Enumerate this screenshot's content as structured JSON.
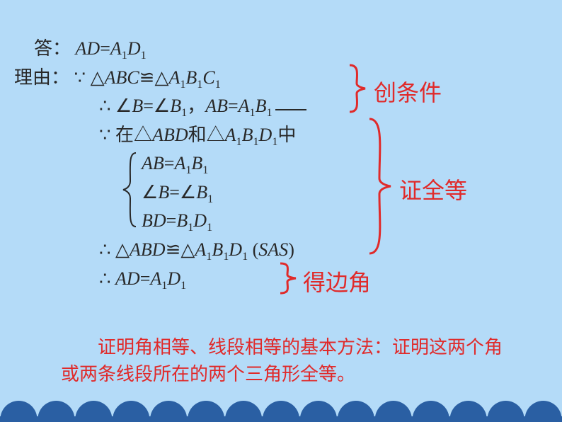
{
  "background_color": "#b4dbf8",
  "text_color": "#282828",
  "accent_color": "#e02a2a",
  "footer_wave_color": "#2a5fa3",
  "base_fontsize": 26,
  "annotation_fontsize": 32,
  "lines": {
    "answer_label": "答：",
    "answer_expr": "AD=A₁D₁",
    "reason_label": "理由：",
    "l1_sym": "∵",
    "l1_text": "△ABC≌△A₁B₁C₁",
    "l2_sym": "∴",
    "l2_text": "∠B=∠B₁，AB=A₁B₁",
    "l3_sym": "∵",
    "l3_text": "在△ABD和△A₁B₁D₁中",
    "brace_lines": {
      "b1": "AB=A₁B₁",
      "b2": "∠B=∠B₁",
      "b3": "BD=B₁D₁"
    },
    "l5_sym": "∴",
    "l5_text": "△ABD≌△A₁B₁D₁ (SAS)",
    "l6_sym": "∴",
    "l6_text": "AD=A₁D₁"
  },
  "annotations": {
    "a1": "创条件",
    "a2": "证全等",
    "a3": "得边角"
  },
  "braces": {
    "left_inner": {
      "color": "#282828",
      "stroke_width": 2
    },
    "right_annot": {
      "color": "#e02a2a",
      "stroke_width": 3
    }
  },
  "summary_text": "证明角相等、线段相等的基本方法：证明这两个角或两条线段所在的两个三角形全等。",
  "footer": {
    "scallop_count": 15,
    "scallop_radius": 26,
    "band_height": 8
  }
}
